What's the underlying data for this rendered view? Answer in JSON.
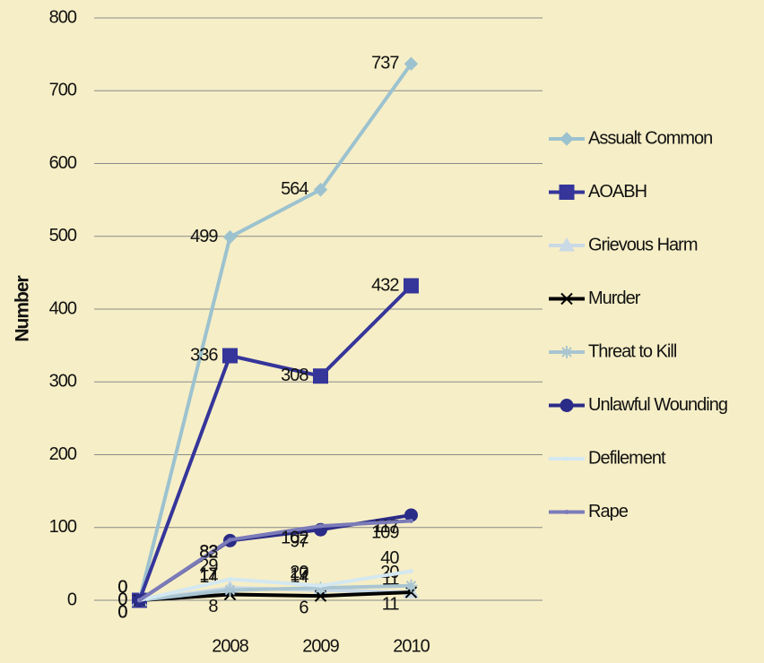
{
  "chart_data": {
    "type": "line",
    "y_label": "Number",
    "categories": [
      null,
      "2008",
      "2009",
      "2010"
    ],
    "ylim": [
      0,
      800
    ],
    "yticks": [
      0,
      100,
      200,
      300,
      400,
      500,
      600,
      700,
      800
    ],
    "grid": true,
    "legend": "right",
    "series": [
      {
        "name": "Assualt Common",
        "color": "#9cc2cf",
        "marker": "diamond",
        "values": [
          0,
          499,
          564,
          737
        ]
      },
      {
        "name": "AOABH",
        "color": "#35359a",
        "marker": "square",
        "values": [
          0,
          336,
          308,
          432
        ]
      },
      {
        "name": "Grievous Harm",
        "color": "#c9d9e6",
        "marker": "triangle",
        "values": [
          0,
          17,
          14,
          11
        ]
      },
      {
        "name": "Murder",
        "color": "#000000",
        "marker": "x",
        "values": [
          0,
          8,
          6,
          11
        ]
      },
      {
        "name": "Threat to Kill",
        "color": "#a9c5d1",
        "marker": "star",
        "values": [
          0,
          14,
          17,
          20
        ]
      },
      {
        "name": "Unlawful Wounding",
        "color": "#2b2b88",
        "marker": "circle",
        "values": [
          0,
          82,
          97,
          117
        ]
      },
      {
        "name": "Defilement",
        "color": "#d3e8f1",
        "marker": "none",
        "values": [
          0,
          29,
          20,
          40
        ]
      },
      {
        "name": "Rape",
        "color": "#7b7bb9",
        "marker": "none",
        "values": [
          0,
          83,
          102,
          109
        ]
      }
    ]
  }
}
